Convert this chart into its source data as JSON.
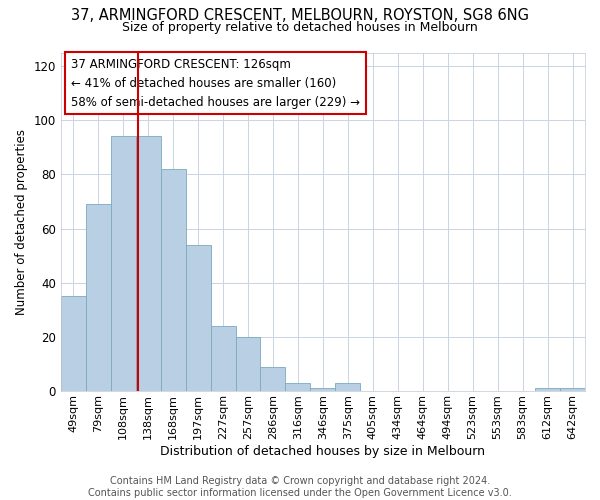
{
  "title": "37, ARMINGFORD CRESCENT, MELBOURN, ROYSTON, SG8 6NG",
  "subtitle": "Size of property relative to detached houses in Melbourn",
  "xlabel": "Distribution of detached houses by size in Melbourn",
  "ylabel": "Number of detached properties",
  "categories": [
    "49sqm",
    "79sqm",
    "108sqm",
    "138sqm",
    "168sqm",
    "197sqm",
    "227sqm",
    "257sqm",
    "286sqm",
    "316sqm",
    "346sqm",
    "375sqm",
    "405sqm",
    "434sqm",
    "464sqm",
    "494sqm",
    "523sqm",
    "553sqm",
    "583sqm",
    "612sqm",
    "642sqm"
  ],
  "values": [
    35,
    69,
    94,
    94,
    82,
    54,
    24,
    20,
    9,
    3,
    1,
    3,
    0,
    0,
    0,
    0,
    0,
    0,
    0,
    1,
    1
  ],
  "bar_color": "#b8cfe4",
  "bar_edge_color": "#7baabf",
  "vline_color": "#cc0000",
  "annotation_line1": "37 ARMINGFORD CRESCENT: 126sqm",
  "annotation_line2": "← 41% of detached houses are smaller (160)",
  "annotation_line3": "58% of semi-detached houses are larger (229) →",
  "annotation_box_edge_color": "#cc0000",
  "ylim_min": 0,
  "ylim_max": 125,
  "yticks": [
    0,
    20,
    40,
    60,
    80,
    100,
    120
  ],
  "grid_color": "#c8d4e3",
  "background_color": "#ffffff",
  "title_fontsize": 10.5,
  "subtitle_fontsize": 9,
  "tick_fontsize": 8,
  "ylabel_fontsize": 8.5,
  "xlabel_fontsize": 9,
  "footer_line1": "Contains HM Land Registry data © Crown copyright and database right 2024.",
  "footer_line2": "Contains public sector information licensed under the Open Government Licence v3.0.",
  "footer_fontsize": 7,
  "vline_pos": 2.6
}
